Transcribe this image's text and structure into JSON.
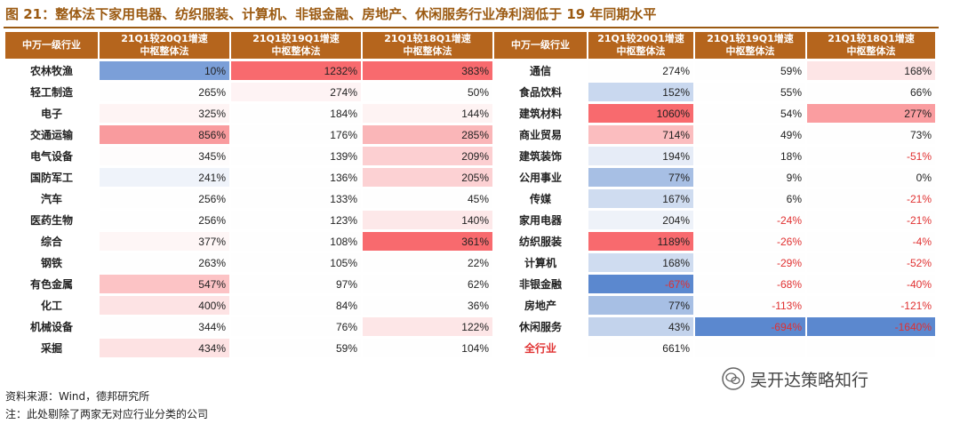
{
  "title": "图 21：整体法下家用电器、纺织服装、计算机、非银金融、房地产、休闲服务行业净利润低于 19 年同期水平",
  "headers": {
    "industry": "中万一级行业",
    "c1_line1": "21Q1较20Q1增速",
    "c1_line2": "中枢整体法",
    "c2_line1": "21Q1较19Q1增速",
    "c2_line2": "中枢整体法",
    "c3_line1": "21Q1较18Q1增速",
    "c3_line2": "中枢整体法"
  },
  "left_rows": [
    {
      "name": "农林牧渔",
      "v1": "10%",
      "v2": "1232%",
      "v3": "383%"
    },
    {
      "name": "轻工制造",
      "v1": "265%",
      "v2": "274%",
      "v3": "50%"
    },
    {
      "name": "电子",
      "v1": "325%",
      "v2": "184%",
      "v3": "144%"
    },
    {
      "name": "交通运输",
      "v1": "856%",
      "v2": "176%",
      "v3": "285%"
    },
    {
      "name": "电气设备",
      "v1": "345%",
      "v2": "139%",
      "v3": "209%"
    },
    {
      "name": "国防军工",
      "v1": "241%",
      "v2": "136%",
      "v3": "205%"
    },
    {
      "name": "汽车",
      "v1": "256%",
      "v2": "133%",
      "v3": "45%"
    },
    {
      "name": "医药生物",
      "v1": "256%",
      "v2": "123%",
      "v3": "140%"
    },
    {
      "name": "综合",
      "v1": "377%",
      "v2": "108%",
      "v3": "361%"
    },
    {
      "name": "钢铁",
      "v1": "263%",
      "v2": "105%",
      "v3": "22%"
    },
    {
      "name": "有色金属",
      "v1": "547%",
      "v2": "97%",
      "v3": "62%"
    },
    {
      "name": "化工",
      "v1": "400%",
      "v2": "84%",
      "v3": "36%"
    },
    {
      "name": "机械设备",
      "v1": "344%",
      "v2": "76%",
      "v3": "122%"
    },
    {
      "name": "采掘",
      "v1": "434%",
      "v2": "59%",
      "v3": "104%"
    }
  ],
  "right_rows": [
    {
      "name": "通信",
      "v1": "274%",
      "v2": "59%",
      "v3": "168%"
    },
    {
      "name": "食品饮料",
      "v1": "152%",
      "v2": "55%",
      "v3": "66%"
    },
    {
      "name": "建筑材料",
      "v1": "1060%",
      "v2": "54%",
      "v3": "277%"
    },
    {
      "name": "商业贸易",
      "v1": "714%",
      "v2": "49%",
      "v3": "73%"
    },
    {
      "name": "建筑装饰",
      "v1": "194%",
      "v2": "18%",
      "v3": "-51%"
    },
    {
      "name": "公用事业",
      "v1": "77%",
      "v2": "9%",
      "v3": "0%"
    },
    {
      "name": "传媒",
      "v1": "167%",
      "v2": "6%",
      "v3": "-21%"
    },
    {
      "name": "家用电器",
      "v1": "204%",
      "v2": "-24%",
      "v3": "-21%"
    },
    {
      "name": "纺织服装",
      "v1": "1189%",
      "v2": "-26%",
      "v3": "-4%"
    },
    {
      "name": "计算机",
      "v1": "168%",
      "v2": "-29%",
      "v3": "-52%"
    },
    {
      "name": "非银金融",
      "v1": "-67%",
      "v2": "-68%",
      "v3": "-40%"
    },
    {
      "name": "房地产",
      "v1": "77%",
      "v2": "-113%",
      "v3": "-121%"
    },
    {
      "name": "休闲服务",
      "v1": "43%",
      "v2": "-694%",
      "v3": "-1640%"
    },
    {
      "name": "全行业",
      "v1": "661%",
      "v2": "",
      "v3": ""
    }
  ],
  "left_colors": [
    [
      "#7b9fd8",
      "#f86a6e",
      "#f86a6e"
    ],
    [
      "#fefefe",
      "#fef3f4",
      "#fefefe"
    ],
    [
      "#fef4f4",
      "#fefefe",
      "#fef3f3"
    ],
    [
      "#f99b9e",
      "#fefefe",
      "#fab6b8"
    ],
    [
      "#fefcfc",
      "#fefefe",
      "#fccfd1"
    ],
    [
      "#eff3fa",
      "#fefefe",
      "#fcd1d3"
    ],
    [
      "#fefefe",
      "#fefefe",
      "#fefefe"
    ],
    [
      "#fefefe",
      "#fefefe",
      "#fde8e9"
    ],
    [
      "#fef6f6",
      "#fefefe",
      "#f86a6e"
    ],
    [
      "#fefefe",
      "#fefefe",
      "#fefefe"
    ],
    [
      "#fcc3c5",
      "#fefefe",
      "#fefefe"
    ],
    [
      "#fde3e4",
      "#fefefe",
      "#fefefe"
    ],
    [
      "#fefefe",
      "#fefefe",
      "#fde6e7"
    ],
    [
      "#fde2e3",
      "#fefefe",
      "#fefefe"
    ]
  ],
  "right_colors": [
    [
      "#fefefe",
      "#fefefe",
      "#fde5e6"
    ],
    [
      "#c9d8ef",
      "#fefefe",
      "#fefefe"
    ],
    [
      "#f86a6e",
      "#fefefe",
      "#fa9da0"
    ],
    [
      "#fbbdbf",
      "#fefefe",
      "#fefefe"
    ],
    [
      "#e6ecf7",
      "#fefefe",
      "#fefefe"
    ],
    [
      "#a7bfe4",
      "#fefefe",
      "#fefefe"
    ],
    [
      "#cfdcf0",
      "#fefefe",
      "#fefefe"
    ],
    [
      "#eef2f9",
      "#fefefe",
      "#fefefe"
    ],
    [
      "#f86a6e",
      "#fefefe",
      "#fefefe"
    ],
    [
      "#cfdcf0",
      "#fefefe",
      "#fefefe"
    ],
    [
      "#5b88cf",
      "#fefefe",
      "#fefefe"
    ],
    [
      "#a7bfe4",
      "#fefefe",
      "#fefefe"
    ],
    [
      "#c3d3ec",
      "#5b88cf",
      "#5b88cf"
    ],
    [
      "#fefefe",
      "#fefefe",
      "#fefefe"
    ]
  ],
  "source": "资料来源：Wind，德邦研究所",
  "note": "注：此处剔除了两家无对应行业分类的公司",
  "watermark": {
    "icon": "wechat-icon",
    "text": "吴开达策略知行"
  }
}
